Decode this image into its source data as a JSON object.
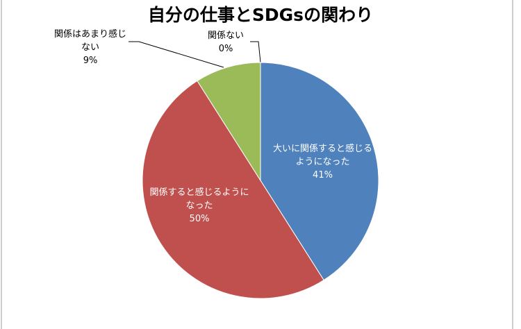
{
  "chart_data": {
    "type": "pie",
    "title": "自分の仕事とSDGsの関わり",
    "categories": [
      "大いに関係すると感じるようになった",
      "関係すると感じるようになった",
      "関係はあまり感じない",
      "関係ない"
    ],
    "values": [
      41,
      50,
      9,
      0
    ],
    "value_labels": [
      "41%",
      "50%",
      "9%",
      "0%"
    ],
    "colors": [
      "#4f81bd",
      "#c0504d",
      "#9bbb59",
      "#8064a2"
    ]
  }
}
